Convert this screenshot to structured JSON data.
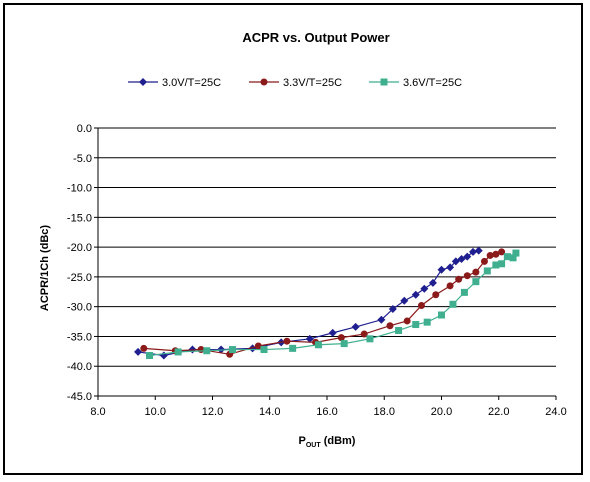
{
  "chart_data": {
    "type": "line",
    "title": "ACPR vs. Output Power",
    "xlabel_main": "P",
    "xlabel_sub": "OUT",
    "xlabel_rest": " (dBm)",
    "ylabel": "ACPR/1Ch (dBc)",
    "xlim": [
      8.0,
      24.0
    ],
    "ylim": [
      -45.0,
      0.0
    ],
    "x_ticks": [
      "8.0",
      "10.0",
      "12.0",
      "14.0",
      "16.0",
      "18.0",
      "20.0",
      "22.0",
      "24.0"
    ],
    "y_ticks": [
      "0.0",
      "-5.0",
      "-10.0",
      "-15.0",
      "-20.0",
      "-25.0",
      "-30.0",
      "-35.0",
      "-40.0",
      "-45.0"
    ],
    "grid": "horizontal",
    "legend_position": "top",
    "series": [
      {
        "name": "3.0V/T=25C",
        "color": "#1F1F8F",
        "marker": "diamond",
        "points": [
          [
            9.4,
            -37.6
          ],
          [
            10.3,
            -38.2
          ],
          [
            11.3,
            -37.2
          ],
          [
            12.3,
            -37.2
          ],
          [
            13.4,
            -37.0
          ],
          [
            14.4,
            -36.0
          ],
          [
            15.4,
            -35.4
          ],
          [
            16.2,
            -34.4
          ],
          [
            17.0,
            -33.4
          ],
          [
            17.9,
            -32.2
          ],
          [
            18.3,
            -30.4
          ],
          [
            18.7,
            -29.0
          ],
          [
            19.1,
            -28.0
          ],
          [
            19.4,
            -27.0
          ],
          [
            19.7,
            -26.0
          ],
          [
            20.0,
            -23.8
          ],
          [
            20.3,
            -23.4
          ],
          [
            20.5,
            -22.4
          ],
          [
            20.7,
            -22.0
          ],
          [
            20.9,
            -21.6
          ],
          [
            21.1,
            -20.8
          ],
          [
            21.3,
            -20.6
          ]
        ]
      },
      {
        "name": "3.3V/T=25C",
        "color": "#8B1A1A",
        "marker": "circle",
        "points": [
          [
            9.6,
            -37.0
          ],
          [
            10.7,
            -37.4
          ],
          [
            11.6,
            -37.2
          ],
          [
            12.6,
            -38.0
          ],
          [
            13.6,
            -36.6
          ],
          [
            14.6,
            -35.8
          ],
          [
            15.6,
            -36.0
          ],
          [
            16.5,
            -35.2
          ],
          [
            17.3,
            -34.6
          ],
          [
            18.2,
            -33.2
          ],
          [
            18.8,
            -32.4
          ],
          [
            19.3,
            -29.8
          ],
          [
            19.8,
            -28.0
          ],
          [
            20.3,
            -26.5
          ],
          [
            20.6,
            -25.4
          ],
          [
            20.9,
            -24.8
          ],
          [
            21.2,
            -24.2
          ],
          [
            21.5,
            -22.4
          ],
          [
            21.7,
            -21.4
          ],
          [
            21.9,
            -21.2
          ],
          [
            22.1,
            -20.8
          ]
        ]
      },
      {
        "name": "3.6V/T=25C",
        "color": "#3FAF8F",
        "marker": "square",
        "points": [
          [
            9.8,
            -38.2
          ],
          [
            10.8,
            -37.6
          ],
          [
            11.8,
            -37.4
          ],
          [
            12.7,
            -37.2
          ],
          [
            13.8,
            -37.2
          ],
          [
            14.8,
            -37.0
          ],
          [
            15.7,
            -36.4
          ],
          [
            16.6,
            -36.2
          ],
          [
            17.5,
            -35.4
          ],
          [
            18.5,
            -34.0
          ],
          [
            19.1,
            -33.0
          ],
          [
            19.5,
            -32.6
          ],
          [
            20.0,
            -31.4
          ],
          [
            20.4,
            -29.6
          ],
          [
            20.8,
            -27.6
          ],
          [
            21.2,
            -25.8
          ],
          [
            21.6,
            -24.0
          ],
          [
            21.9,
            -23.0
          ],
          [
            22.1,
            -22.8
          ],
          [
            22.3,
            -21.6
          ],
          [
            22.5,
            -21.8
          ],
          [
            22.6,
            -21.0
          ]
        ]
      }
    ]
  }
}
